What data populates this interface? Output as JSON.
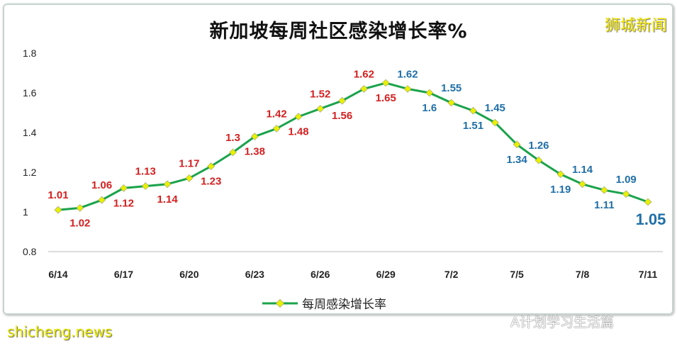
{
  "watermark_brand": "狮城新闻",
  "watermark_source": "shicheng.news",
  "watermark_wechat": "A计划学习生活篇",
  "colors": {
    "line": "#1aa34a",
    "marker": "#e8f000",
    "label_rise": "#d42020",
    "label_fall": "#1f6fa8"
  },
  "chart_data": {
    "type": "line",
    "title": "新加坡每周社区感染增长率%",
    "xlabel": "",
    "ylabel": "",
    "ylim": [
      0.8,
      1.8
    ],
    "yticks": [
      "0.8",
      "1",
      "1.2",
      "1.4",
      "1.6",
      "1.8"
    ],
    "x": [
      "6/14",
      "6/15",
      "6/16",
      "6/17",
      "6/18",
      "6/19",
      "6/20",
      "6/21",
      "6/22",
      "6/23",
      "6/24",
      "6/25",
      "6/26",
      "6/27",
      "6/28",
      "6/29",
      "6/30",
      "7/1",
      "7/2",
      "7/3",
      "7/4",
      "7/5",
      "7/6",
      "7/7",
      "7/8",
      "7/9",
      "7/10",
      "7/11"
    ],
    "xticks": [
      "6/14",
      "6/17",
      "6/20",
      "6/23",
      "6/26",
      "6/29",
      "7/2",
      "7/5",
      "7/8",
      "7/11"
    ],
    "grid": false,
    "legend": "bottom",
    "series": [
      {
        "name": "每周感染增长率",
        "values": [
          1.01,
          1.02,
          1.06,
          1.12,
          1.13,
          1.14,
          1.17,
          1.23,
          1.3,
          1.38,
          1.42,
          1.48,
          1.52,
          1.56,
          1.62,
          1.65,
          1.62,
          1.6,
          1.55,
          1.51,
          1.45,
          1.34,
          1.26,
          1.19,
          1.14,
          1.11,
          1.09,
          1.05
        ]
      }
    ]
  }
}
